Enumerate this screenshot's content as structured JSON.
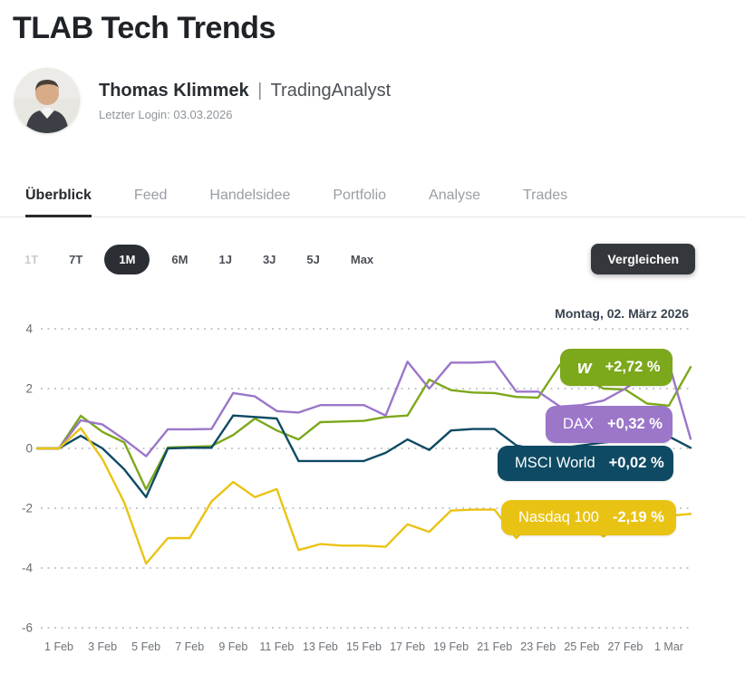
{
  "page": {
    "title": "TLAB Tech Trends"
  },
  "profile": {
    "name": "Thomas Klimmek",
    "separator": "|",
    "role": "TradingAnalyst",
    "last_login": "Letzter Login: 03.03.2026",
    "avatar": "portrait-photo"
  },
  "tabs": {
    "items": [
      {
        "label": "Überblick"
      },
      {
        "label": "Feed"
      },
      {
        "label": "Handelsidee"
      },
      {
        "label": "Portfolio"
      },
      {
        "label": "Analyse"
      },
      {
        "label": "Trades"
      }
    ],
    "active_index": 0
  },
  "ranges": {
    "items": [
      "1T",
      "7T",
      "1M",
      "6M",
      "1J",
      "3J",
      "5J",
      "Max"
    ],
    "active_index": 2,
    "disabled_index": 0
  },
  "compare_button": "Vergleichen",
  "chart": {
    "date_label": "Montag, 02. März 2026"
  },
  "chart_data": {
    "type": "line",
    "title": "Performance comparison (%), 1 month",
    "x_start": "31 Jan 2026",
    "x_end": "2 Mar 2026",
    "x_points": 31,
    "ylabel": "%",
    "ylim": [
      -6.5,
      4.8
    ],
    "y_ticks": [
      4,
      2,
      0,
      -2,
      -4,
      -6
    ],
    "grid": "dotted-horizontal",
    "legend_position": "right-overlay",
    "x_ticks": [
      {
        "i": 1,
        "label": "1 Feb"
      },
      {
        "i": 3,
        "label": "3 Feb"
      },
      {
        "i": 5,
        "label": "5 Feb"
      },
      {
        "i": 7,
        "label": "7 Feb"
      },
      {
        "i": 9,
        "label": "9 Feb"
      },
      {
        "i": 11,
        "label": "11 Feb"
      },
      {
        "i": 13,
        "label": "13 Feb"
      },
      {
        "i": 15,
        "label": "15 Feb"
      },
      {
        "i": 17,
        "label": "17 Feb"
      },
      {
        "i": 19,
        "label": "19 Feb"
      },
      {
        "i": 21,
        "label": "21 Feb"
      },
      {
        "i": 23,
        "label": "23 Feb"
      },
      {
        "i": 25,
        "label": "25 Feb"
      },
      {
        "i": 27,
        "label": "27 Feb"
      },
      {
        "i": 29,
        "label": "1 Mar"
      }
    ],
    "series": [
      {
        "name": "wikifolio",
        "color": "#7CA81B",
        "values": [
          0,
          0,
          1.09,
          0.55,
          0.2,
          -1.37,
          0.03,
          0.05,
          0.08,
          0.45,
          1.0,
          0.6,
          0.3,
          0.88,
          0.9,
          0.92,
          1.05,
          1.1,
          2.3,
          1.95,
          1.87,
          1.85,
          1.72,
          1.7,
          2.8,
          2.4,
          2.0,
          1.97,
          1.5,
          1.43,
          2.72
        ]
      },
      {
        "name": "DAX",
        "color": "#9B76C9",
        "values": [
          0,
          0,
          0.94,
          0.8,
          0.3,
          -0.26,
          0.64,
          0.64,
          0.65,
          1.85,
          1.74,
          1.25,
          1.2,
          1.45,
          1.45,
          1.45,
          1.1,
          2.9,
          2.0,
          2.87,
          2.87,
          2.9,
          1.9,
          1.9,
          1.4,
          1.45,
          1.6,
          2.0,
          2.5,
          2.85,
          0.32
        ]
      },
      {
        "name": "MSCI World",
        "color": "#0E4A64",
        "values": [
          0,
          0,
          0.42,
          0.0,
          -0.7,
          -1.63,
          0.0,
          0.02,
          0.02,
          1.1,
          1.05,
          1.0,
          -0.42,
          -0.42,
          -0.42,
          -0.42,
          -0.15,
          0.3,
          -0.05,
          0.6,
          0.65,
          0.65,
          0.1,
          -0.05,
          0.0,
          0.1,
          0.2,
          0.28,
          0.35,
          0.4,
          0.02
        ]
      },
      {
        "name": "Nasdaq 100",
        "color": "#E9C314",
        "values": [
          0,
          0,
          0.68,
          -0.36,
          -1.81,
          -3.85,
          -3.0,
          -3.0,
          -1.78,
          -1.12,
          -1.63,
          -1.36,
          -3.4,
          -3.2,
          -3.25,
          -3.25,
          -3.29,
          -2.54,
          -2.79,
          -2.08,
          -2.05,
          -2.05,
          -3.0,
          -2.2,
          -2.3,
          -2.35,
          -2.95,
          -2.35,
          -2.3,
          -2.25,
          -2.19
        ]
      }
    ],
    "badges": [
      {
        "icon": "w",
        "label": "",
        "value": "+2,72 %",
        "color": "#7CA81B"
      },
      {
        "icon": "",
        "label": "DAX",
        "value": "+0,32 %",
        "color": "#9B76C9"
      },
      {
        "icon": "",
        "label": "MSCI World",
        "value": "+0,02 %",
        "color": "#0E4A64"
      },
      {
        "icon": "",
        "label": "Nasdaq 100",
        "value": "-2,19 %",
        "color": "#E9C314"
      }
    ]
  }
}
